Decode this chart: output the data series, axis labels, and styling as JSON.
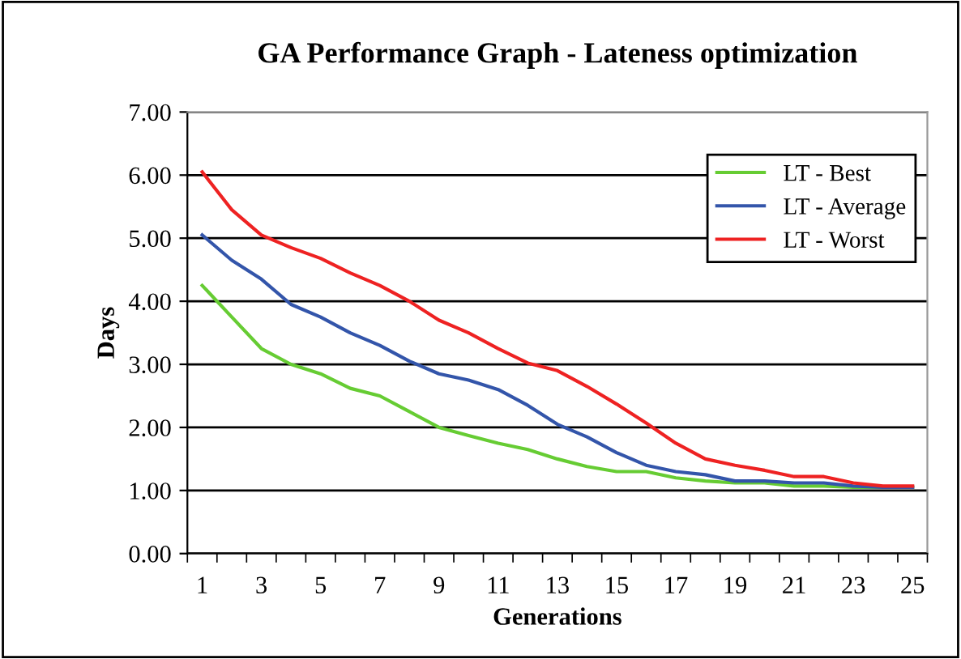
{
  "chart_data": {
    "type": "line",
    "title": "GA Performance Graph - Lateness optimization",
    "xlabel": "Generations",
    "ylabel": "Days",
    "categories": [
      "1",
      null,
      "3",
      null,
      "5",
      null,
      "7",
      null,
      "9",
      null,
      "11",
      null,
      "13",
      null,
      "15",
      null,
      "17",
      null,
      "19",
      null,
      "21",
      null,
      "23",
      null,
      "25"
    ],
    "series": [
      {
        "name": "LT - Best",
        "color": "#66cc33",
        "values": [
          4.25,
          3.75,
          3.25,
          3.0,
          2.85,
          2.62,
          2.5,
          2.25,
          2.0,
          1.87,
          1.75,
          1.65,
          1.5,
          1.38,
          1.3,
          1.3,
          1.2,
          1.15,
          1.12,
          1.12,
          1.07,
          1.07,
          1.05,
          1.05,
          1.05
        ]
      },
      {
        "name": "LT - Average",
        "color": "#3355aa",
        "values": [
          5.05,
          4.65,
          4.35,
          3.95,
          3.75,
          3.5,
          3.3,
          3.05,
          2.85,
          2.75,
          2.6,
          2.35,
          2.05,
          1.85,
          1.6,
          1.4,
          1.3,
          1.25,
          1.15,
          1.15,
          1.12,
          1.12,
          1.07,
          1.05,
          1.05
        ]
      },
      {
        "name": "LT - Worst",
        "color": "#ee2222",
        "values": [
          6.05,
          5.45,
          5.05,
          4.85,
          4.68,
          4.45,
          4.25,
          4.0,
          3.7,
          3.5,
          3.25,
          3.02,
          2.9,
          2.65,
          2.37,
          2.07,
          1.75,
          1.5,
          1.4,
          1.32,
          1.22,
          1.22,
          1.12,
          1.07,
          1.07
        ]
      }
    ],
    "ylim": [
      0,
      7
    ],
    "yticks": [
      {
        "value": 0,
        "label": "0.00"
      },
      {
        "value": 1,
        "label": "1.00"
      },
      {
        "value": 2,
        "label": "2.00"
      },
      {
        "value": 3,
        "label": "3.00"
      },
      {
        "value": 4,
        "label": "4.00"
      },
      {
        "value": 5,
        "label": "5.00"
      },
      {
        "value": 6,
        "label": "6.00"
      },
      {
        "value": 7,
        "label": "7.00"
      }
    ],
    "grid": "y",
    "legend": "top right",
    "marker": "none",
    "line_style": "solid"
  }
}
